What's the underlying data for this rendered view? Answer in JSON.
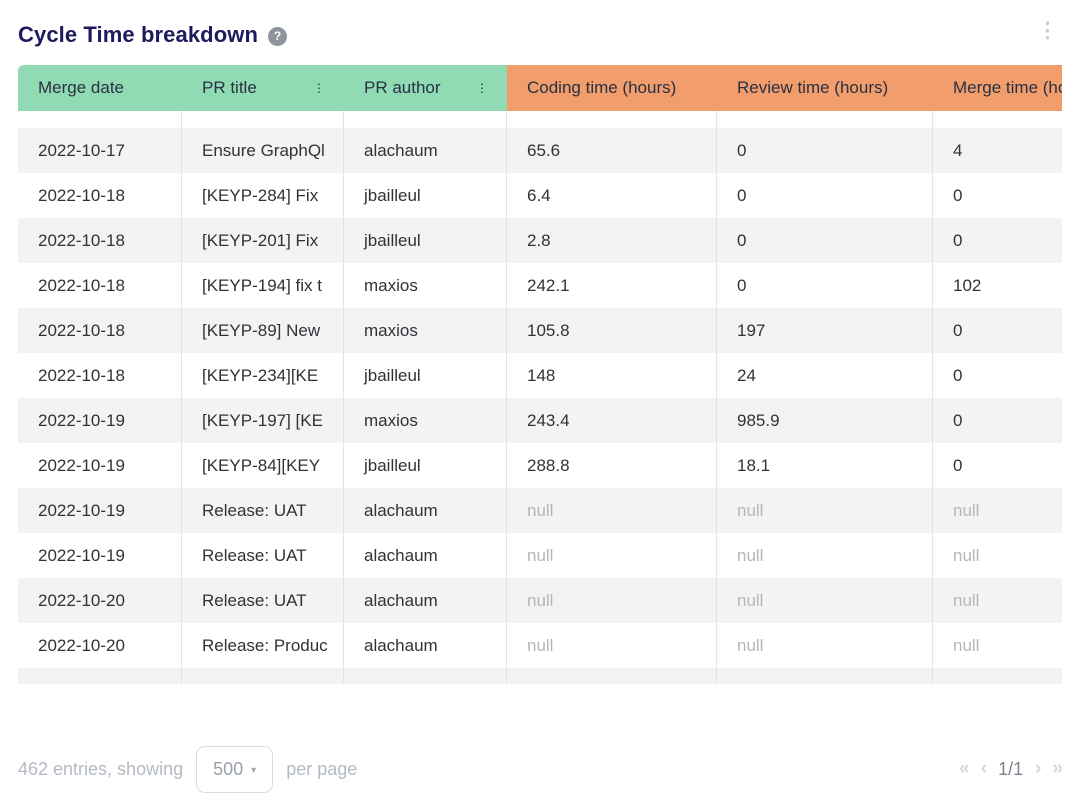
{
  "title": "Cycle Time breakdown",
  "icons": {
    "help": "?",
    "kebab": "⋮",
    "filter": "⋮",
    "caret": "▾"
  },
  "colors": {
    "green_header": "#90dbb4",
    "orange_header": "#f29d6c",
    "title_text": "#1e1a5e",
    "stripe_row": "#f3f3f4",
    "null_text": "#b4b6ba"
  },
  "table": {
    "columns": [
      {
        "label": "Merge date",
        "group": "green",
        "has_filter": false
      },
      {
        "label": "PR title",
        "group": "green",
        "has_filter": true
      },
      {
        "label": "PR author",
        "group": "green",
        "has_filter": true
      },
      {
        "label": "Coding time (hours)",
        "group": "orange",
        "has_filter": false
      },
      {
        "label": "Review time (hours)",
        "group": "orange",
        "has_filter": false
      },
      {
        "label": "Merge time (hours)",
        "group": "orange",
        "has_filter": false
      }
    ],
    "rows": [
      {
        "date": "2022-10-17",
        "title": "Ensure GraphQl",
        "author": "alachaum",
        "coding": "65.6",
        "review": "0",
        "merge": "4"
      },
      {
        "date": "2022-10-18",
        "title": "[KEYP-284] Fix",
        "author": "jbailleul",
        "coding": "6.4",
        "review": "0",
        "merge": "0"
      },
      {
        "date": "2022-10-18",
        "title": "[KEYP-201] Fix",
        "author": "jbailleul",
        "coding": "2.8",
        "review": "0",
        "merge": "0"
      },
      {
        "date": "2022-10-18",
        "title": "[KEYP-194] fix t",
        "author": "maxios",
        "coding": "242.1",
        "review": "0",
        "merge": "102"
      },
      {
        "date": "2022-10-18",
        "title": "[KEYP-89] New",
        "author": "maxios",
        "coding": "105.8",
        "review": "197",
        "merge": "0"
      },
      {
        "date": "2022-10-18",
        "title": "[KEYP-234][KE",
        "author": "jbailleul",
        "coding": "148",
        "review": "24",
        "merge": "0"
      },
      {
        "date": "2022-10-19",
        "title": "[KEYP-197] [KE",
        "author": "maxios",
        "coding": "243.4",
        "review": "985.9",
        "merge": "0"
      },
      {
        "date": "2022-10-19",
        "title": "[KEYP-84][KEY",
        "author": "jbailleul",
        "coding": "288.8",
        "review": "18.1",
        "merge": "0"
      },
      {
        "date": "2022-10-19",
        "title": "Release: UAT",
        "author": "alachaum",
        "coding": "null",
        "review": "null",
        "merge": "null"
      },
      {
        "date": "2022-10-19",
        "title": "Release: UAT",
        "author": "alachaum",
        "coding": "null",
        "review": "null",
        "merge": "null"
      },
      {
        "date": "2022-10-20",
        "title": "Release: UAT",
        "author": "alachaum",
        "coding": "null",
        "review": "null",
        "merge": "null"
      },
      {
        "date": "2022-10-20",
        "title": "Release: Produc",
        "author": "alachaum",
        "coding": "null",
        "review": "null",
        "merge": "null"
      }
    ]
  },
  "footer": {
    "entries_text": "462 entries, showing",
    "page_size": "500",
    "per_page_text": "per page",
    "pagination": {
      "first": "«",
      "prev": "‹",
      "page_indicator": "1/1",
      "next": "›",
      "last": "»"
    }
  }
}
